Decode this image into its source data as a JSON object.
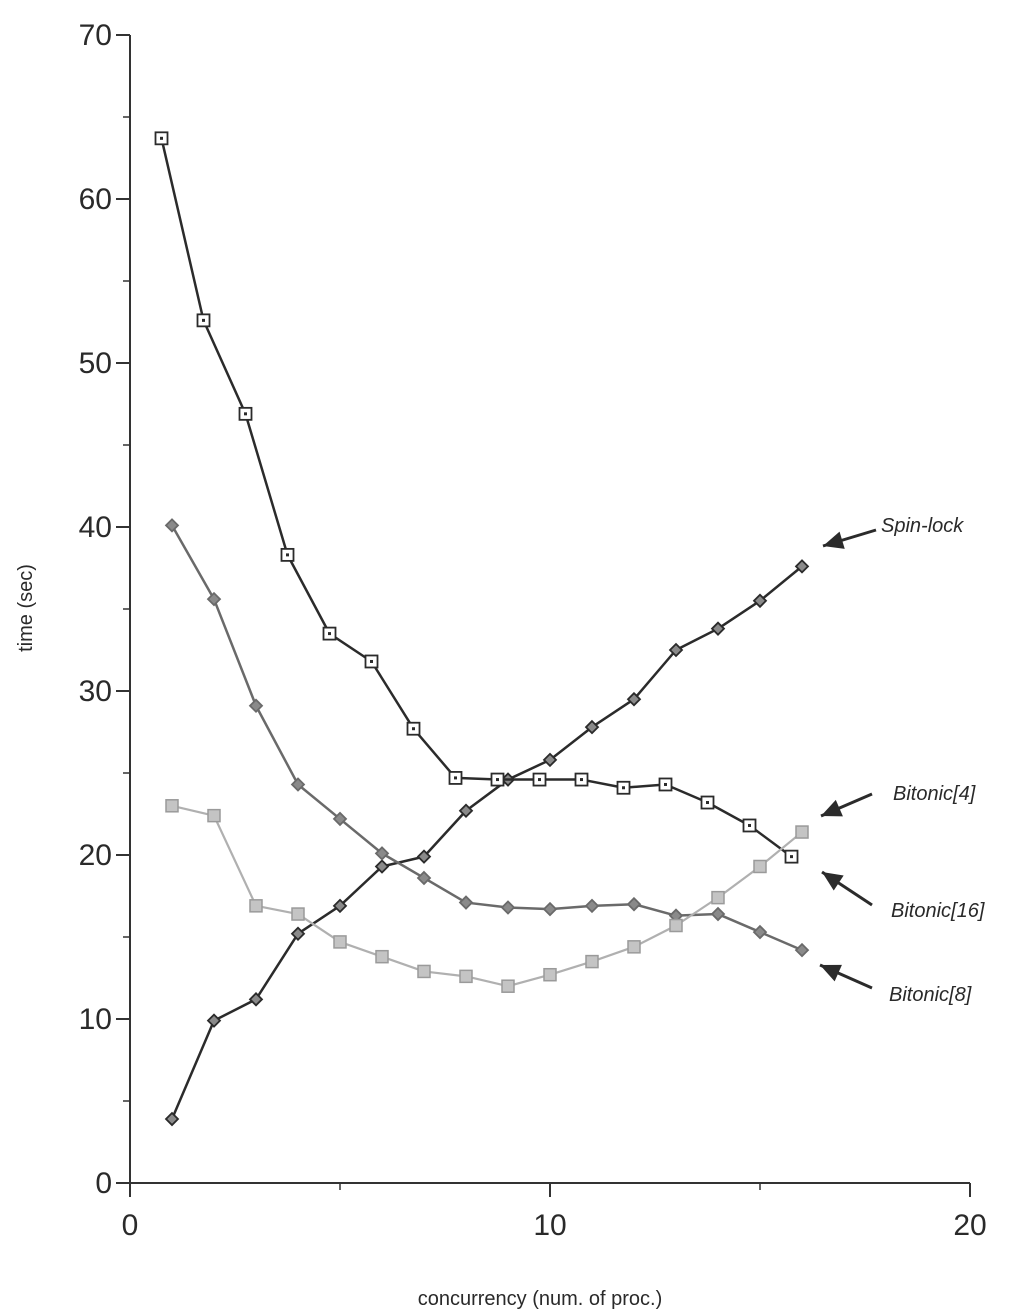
{
  "chart_data": {
    "type": "line",
    "title": "",
    "xlabel": "concurrency  (num. of proc.)",
    "ylabel": "time (sec)",
    "xlim": [
      0,
      20
    ],
    "ylim": [
      0,
      70
    ],
    "xticks": [
      0,
      10,
      20
    ],
    "xminor": [
      5,
      15
    ],
    "yticks": [
      0,
      10,
      20,
      30,
      40,
      50,
      60,
      70
    ],
    "yminor": [
      5,
      15,
      25,
      35,
      45,
      55,
      65
    ],
    "grid": false,
    "legend": "none",
    "series": [
      {
        "name": "Spin-lock",
        "marker": "diamond",
        "color": "#2b2b2b",
        "x": [
          1,
          2,
          3,
          4,
          5,
          6,
          7,
          8,
          9,
          10,
          11,
          12,
          13,
          14,
          15,
          16
        ],
        "values": [
          3.9,
          9.9,
          11.2,
          15.2,
          16.9,
          19.3,
          19.9,
          22.7,
          24.6,
          25.8,
          27.8,
          29.5,
          32.5,
          33.8,
          35.5,
          37.6
        ]
      },
      {
        "name": "Bitonic[4]",
        "marker": "square",
        "color": "#2b2b2b",
        "x": [
          0.75,
          1.75,
          2.75,
          3.75,
          4.75,
          5.75,
          6.75,
          7.75,
          8.75,
          9.75,
          10.75,
          11.75,
          12.75,
          13.75,
          14.75,
          15.75
        ],
        "values": [
          63.7,
          52.6,
          46.9,
          38.3,
          33.5,
          31.8,
          27.7,
          24.7,
          24.6,
          24.6,
          24.6,
          24.1,
          24.3,
          23.2,
          21.8,
          19.9
        ]
      },
      {
        "name": "Bitonic[8]",
        "marker": "diamond",
        "color": "#6a6a6a",
        "x": [
          1,
          2,
          3,
          4,
          5,
          6,
          7,
          8,
          9,
          10,
          11,
          12,
          13,
          14,
          15,
          16
        ],
        "values": [
          40.1,
          35.6,
          29.1,
          24.3,
          22.2,
          20.1,
          18.6,
          17.1,
          16.8,
          16.7,
          16.9,
          17.0,
          16.3,
          16.4,
          15.3,
          14.2
        ]
      },
      {
        "name": "Bitonic[16]",
        "marker": "square-filled",
        "color": "#b0b0b0",
        "x": [
          1,
          2,
          3,
          4,
          5,
          6,
          7,
          8,
          9,
          10,
          11,
          12,
          13,
          14,
          15,
          16
        ],
        "values": [
          23.0,
          22.4,
          16.9,
          16.4,
          14.7,
          13.8,
          12.9,
          12.6,
          12.0,
          12.7,
          13.5,
          14.4,
          15.7,
          17.4,
          19.3,
          21.4
        ]
      }
    ],
    "annotations": [
      {
        "text": "Spin-lock",
        "series": "Spin-lock"
      },
      {
        "text": "Bitonic[4]",
        "series": "Bitonic[16]"
      },
      {
        "text": "Bitonic[16]",
        "series": "Bitonic[4]"
      },
      {
        "text": "Bitonic[8]",
        "series": "Bitonic[8]"
      }
    ]
  }
}
